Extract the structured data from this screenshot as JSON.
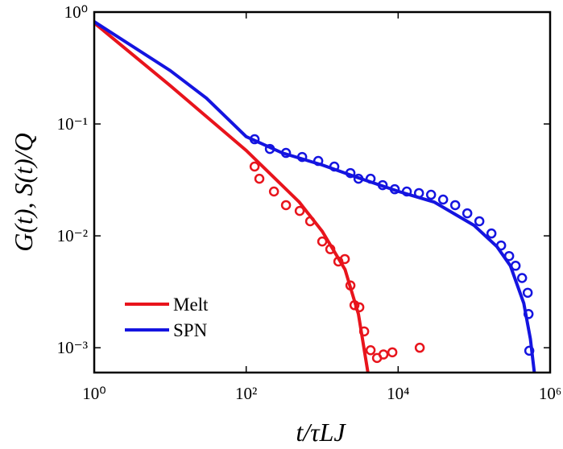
{
  "chart_data": {
    "type": "line",
    "xlabel": "t/τLJ",
    "ylabel": "G(t), S(t)/Q",
    "xscale": "log",
    "yscale": "log",
    "xlim": [
      1,
      1000000
    ],
    "ylim": [
      0.0006,
      1
    ],
    "xticks": [
      {
        "value": 1,
        "label": "10⁰"
      },
      {
        "value": 100,
        "label": "10²"
      },
      {
        "value": 10000,
        "label": "10⁴"
      },
      {
        "value": 1000000,
        "label": "10⁶"
      }
    ],
    "yticks": [
      {
        "value": 0.001,
        "label": "10⁻³"
      },
      {
        "value": 0.01,
        "label": "10⁻²"
      },
      {
        "value": 0.1,
        "label": "10⁻¹"
      },
      {
        "value": 1,
        "label": "10⁰"
      }
    ],
    "legend": "lower left",
    "series": [
      {
        "name": "Melt",
        "color": "#e8141c",
        "x": [
          1,
          10,
          100,
          500,
          1000,
          2000,
          3000,
          4000
        ],
        "values": [
          0.8,
          0.22,
          0.058,
          0.02,
          0.011,
          0.005,
          0.002,
          0.0006
        ],
        "points": {
          "x": [
            129,
            149,
            232,
            334,
            506,
            695,
            1002,
            1279,
            1633,
            1986,
            2355,
            2663,
            3083,
            3570,
            4338,
            5272,
            6412,
            8390,
            19230
          ],
          "values": [
            0.0416,
            0.0324,
            0.0249,
            0.0188,
            0.0167,
            0.0135,
            0.0089,
            0.0076,
            0.0059,
            0.0062,
            0.0036,
            0.0024,
            0.0023,
            0.0014,
            0.00095,
            0.00081,
            0.00087,
            0.00091,
            0.001
          ]
        }
      },
      {
        "name": "SPN",
        "color": "#1414e0",
        "x": [
          1,
          10,
          30,
          100,
          300,
          1000,
          3000,
          10000,
          30000,
          100000,
          200000,
          300000,
          450000,
          550000,
          620000
        ],
        "values": [
          0.82,
          0.3,
          0.17,
          0.077,
          0.055,
          0.043,
          0.033,
          0.025,
          0.02,
          0.0124,
          0.008,
          0.0054,
          0.0025,
          0.0012,
          0.0006
        ],
        "points": {
          "x": [
            129,
            205,
            334,
            545,
            888,
            1445,
            2355,
            3006,
            4338,
            6252,
            9016,
            13000,
            18790,
            27100,
            39080,
            56360,
            81280,
            117200,
            169000,
            226500,
            289000,
            351600,
            427600,
            507000,
            520000,
            532000
          ],
          "values": [
            0.073,
            0.0598,
            0.0551,
            0.0507,
            0.0467,
            0.0416,
            0.0364,
            0.0324,
            0.0324,
            0.0284,
            0.0261,
            0.0249,
            0.0241,
            0.0233,
            0.0211,
            0.0188,
            0.0159,
            0.0135,
            0.0105,
            0.0082,
            0.0066,
            0.0054,
            0.0042,
            0.0031,
            0.002,
            0.00094
          ]
        }
      }
    ]
  }
}
